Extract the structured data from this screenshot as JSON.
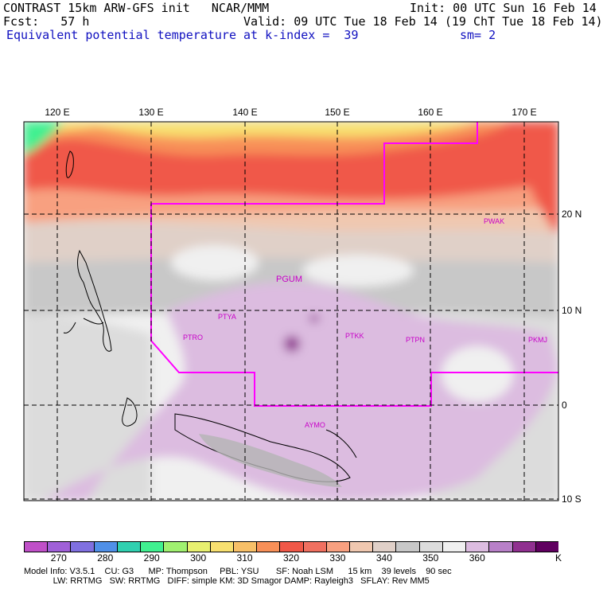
{
  "header": {
    "line1_left": "CONTRAST 15km ARW-GFS init   NCAR/MMM",
    "line1_right": "Init: 00 UTC Sun 16 Feb 14",
    "line2_left": "Fcst:   57 h",
    "line2_right": "Valid: 09 UTC Tue 18 Feb 14 (19 ChT Tue 18 Feb 14)",
    "line3_left": "Equivalent potential temperature",
    "line3_mid": "at k-index =  39",
    "line3_right": "sm= 2"
  },
  "map": {
    "lon_labels": [
      "120 E",
      "130 E",
      "140 E",
      "150 E",
      "160 E",
      "170 E"
    ],
    "lat_labels": [
      "20 N",
      "10 N",
      "0",
      "10 S"
    ],
    "stations": [
      "PGUM",
      "PTYA",
      "PTRO",
      "PTKK",
      "PTPN",
      "PKMJ",
      "PWAK",
      "AYMO"
    ],
    "colors": {
      "boundary": "#ff00ff",
      "station_label": "#c800c8",
      "grid": "#000000"
    }
  },
  "colorbar": {
    "labels": [
      "270",
      "280",
      "290",
      "300",
      "310",
      "320",
      "330",
      "340",
      "350",
      "360"
    ],
    "unit": "K",
    "colors": [
      "#c050c8",
      "#a060d8",
      "#8070e0",
      "#5090e8",
      "#30d0b0",
      "#40f090",
      "#a0f070",
      "#e8f070",
      "#f8e070",
      "#f8c068",
      "#f89058",
      "#f05848",
      "#f07060",
      "#f8a080",
      "#f0c8b0",
      "#e0d0c8",
      "#c8c8c8",
      "#dcdcdc",
      "#f0f0f0",
      "#dcbce0",
      "#b880c8",
      "#903090",
      "#600060"
    ]
  },
  "footer": {
    "line1": "Model Info: V3.5.1    CU: G3      MP: Thompson     PBL: YSU       SF: Noah LSM      15 km    39 levels    90 sec",
    "line2": "            LW: RRTMG   SW: RRTMG   DIFF: simple KM: 3D Smagor DAMP: Rayleigh3   SFLAY: Rev MM5"
  }
}
